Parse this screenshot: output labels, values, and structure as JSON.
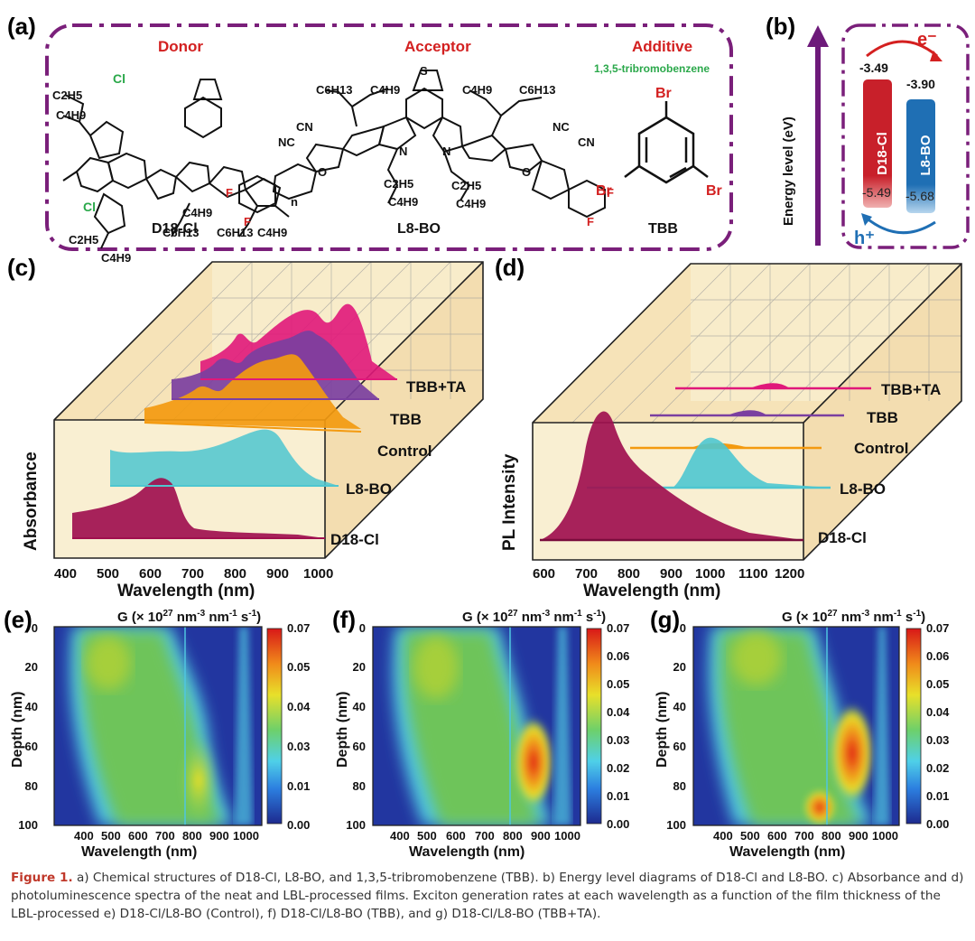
{
  "panel_labels": {
    "a": "(a)",
    "b": "(b)",
    "c": "(c)",
    "d": "(d)",
    "e": "(e)",
    "f": "(f)",
    "g": "(g)"
  },
  "panel_a": {
    "donor": {
      "role": "Donor",
      "name": "D18-Cl",
      "substituent_top": "C2H5",
      "substituent_top2": "C4H9",
      "cl": "Cl",
      "n_label": "n",
      "c6": "C6H13",
      "c4": "C4H9"
    },
    "acceptor": {
      "role": "Acceptor",
      "name": "L8-BO",
      "c6": "C6H13",
      "c4": "C4H9",
      "c2": "C2H5",
      "cn": "CN",
      "nc": "NC",
      "f": "F",
      "o": "O",
      "n": "N",
      "s": "S"
    },
    "additive": {
      "role": "Additive",
      "full_name": "1,3,5-tribromobenzene",
      "name": "TBB",
      "br": "Br"
    }
  },
  "panel_b": {
    "y_axis": "Energy level (eV)",
    "donor": {
      "name": "D18-Cl",
      "lumo": "-3.49",
      "homo": "-5.49",
      "color": "#c8202a"
    },
    "acceptor": {
      "name": "L8-BO",
      "lumo": "-3.90",
      "homo": "-5.68",
      "color": "#1f6fb4"
    },
    "electron": "e⁻",
    "hole": "h⁺"
  },
  "panel_c": {
    "y_label": "Absorbance",
    "x_label": "Wavelength (nm)",
    "x_ticks": [
      "400",
      "500",
      "600",
      "700",
      "800",
      "900",
      "1000"
    ],
    "series": [
      {
        "name": "TBB+TA",
        "color": "#e0187a"
      },
      {
        "name": "TBB",
        "color": "#7b3fa0"
      },
      {
        "name": "Control",
        "color": "#f39a10"
      },
      {
        "name": "L8-BO",
        "color": "#4ec6d0"
      },
      {
        "name": "D18-Cl",
        "color": "#a0104f"
      }
    ]
  },
  "panel_d": {
    "y_label": "PL Intensity",
    "x_label": "Wavelength (nm)",
    "x_ticks": [
      "600",
      "700",
      "800",
      "900",
      "1000",
      "1100",
      "1200"
    ],
    "series": [
      {
        "name": "TBB+TA",
        "color": "#e0187a"
      },
      {
        "name": "TBB",
        "color": "#7b3fa0"
      },
      {
        "name": "Control",
        "color": "#f39a10"
      },
      {
        "name": "L8-BO",
        "color": "#4ec6d0"
      },
      {
        "name": "D18-Cl",
        "color": "#a0104f"
      }
    ]
  },
  "heatmaps": {
    "title": "G (× 10",
    "title_exp": "27",
    "title_units": " nm",
    "unit_exp1": "-3",
    "unit_mid": " nm",
    "unit_exp2": "-1",
    "unit_s": " s",
    "unit_exp3": "-1",
    "unit_close": ")",
    "y_label": "Depth (nm)",
    "x_label": "Wavelength (nm)",
    "y_ticks": [
      "0",
      "20",
      "40",
      "60",
      "80",
      "100"
    ],
    "x_ticks": [
      "400",
      "500",
      "600",
      "700",
      "800",
      "900",
      "1000"
    ],
    "colorbar_e": [
      "0.07",
      "0.05",
      "0.04",
      "0.03",
      "0.01",
      "0.00"
    ],
    "colorbar_f": [
      "0.07",
      "0.06",
      "0.05",
      "0.04",
      "0.03",
      "0.02",
      "0.01",
      "0.00"
    ],
    "colorbar_g": [
      "0.07",
      "0.06",
      "0.05",
      "0.04",
      "0.03",
      "0.02",
      "0.01",
      "0.00"
    ]
  },
  "caption": {
    "label": "Figure 1.",
    "text": " a) Chemical structures of D18-Cl, L8-BO, and 1,3,5-tribromobenzene (TBB). b) Energy level diagrams of D18-Cl and L8-BO. c) Absorbance and d) photoluminescence spectra of the neat and LBL-processed films. Exciton generation rates at each wavelength as a function of the film thickness of the LBL-processed e) D18-Cl/L8-BO (Control), f) D18-Cl/L8-BO (TBB), and g) D18-Cl/L8-BO (TBB+TA)."
  }
}
